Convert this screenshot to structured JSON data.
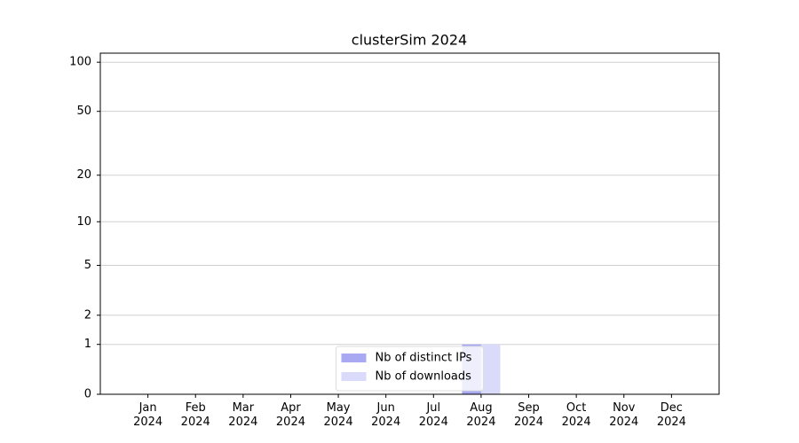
{
  "chart_data": {
    "type": "bar",
    "title": "clusterSim 2024",
    "categories": [
      "Jan 2024",
      "Feb 2024",
      "Mar 2024",
      "Apr 2024",
      "May 2024",
      "Jun 2024",
      "Jul 2024",
      "Aug 2024",
      "Sep 2024",
      "Oct 2024",
      "Nov 2024",
      "Dec 2024"
    ],
    "series": [
      {
        "name": "Nb of distinct IPs",
        "color": "#a8a8f3",
        "values": [
          0,
          0,
          0,
          0,
          0,
          0,
          0,
          1,
          0,
          0,
          0,
          0
        ]
      },
      {
        "name": "Nb of downloads",
        "color": "#dadafa",
        "values": [
          0,
          0,
          0,
          0,
          0,
          0,
          0,
          1,
          0,
          0,
          0,
          0
        ]
      }
    ],
    "yscale": "log1p",
    "ylim": [
      0,
      113.5
    ],
    "yticks": [
      0,
      1,
      2,
      5,
      10,
      20,
      50,
      100
    ],
    "grid": true,
    "legend": "lower center"
  }
}
